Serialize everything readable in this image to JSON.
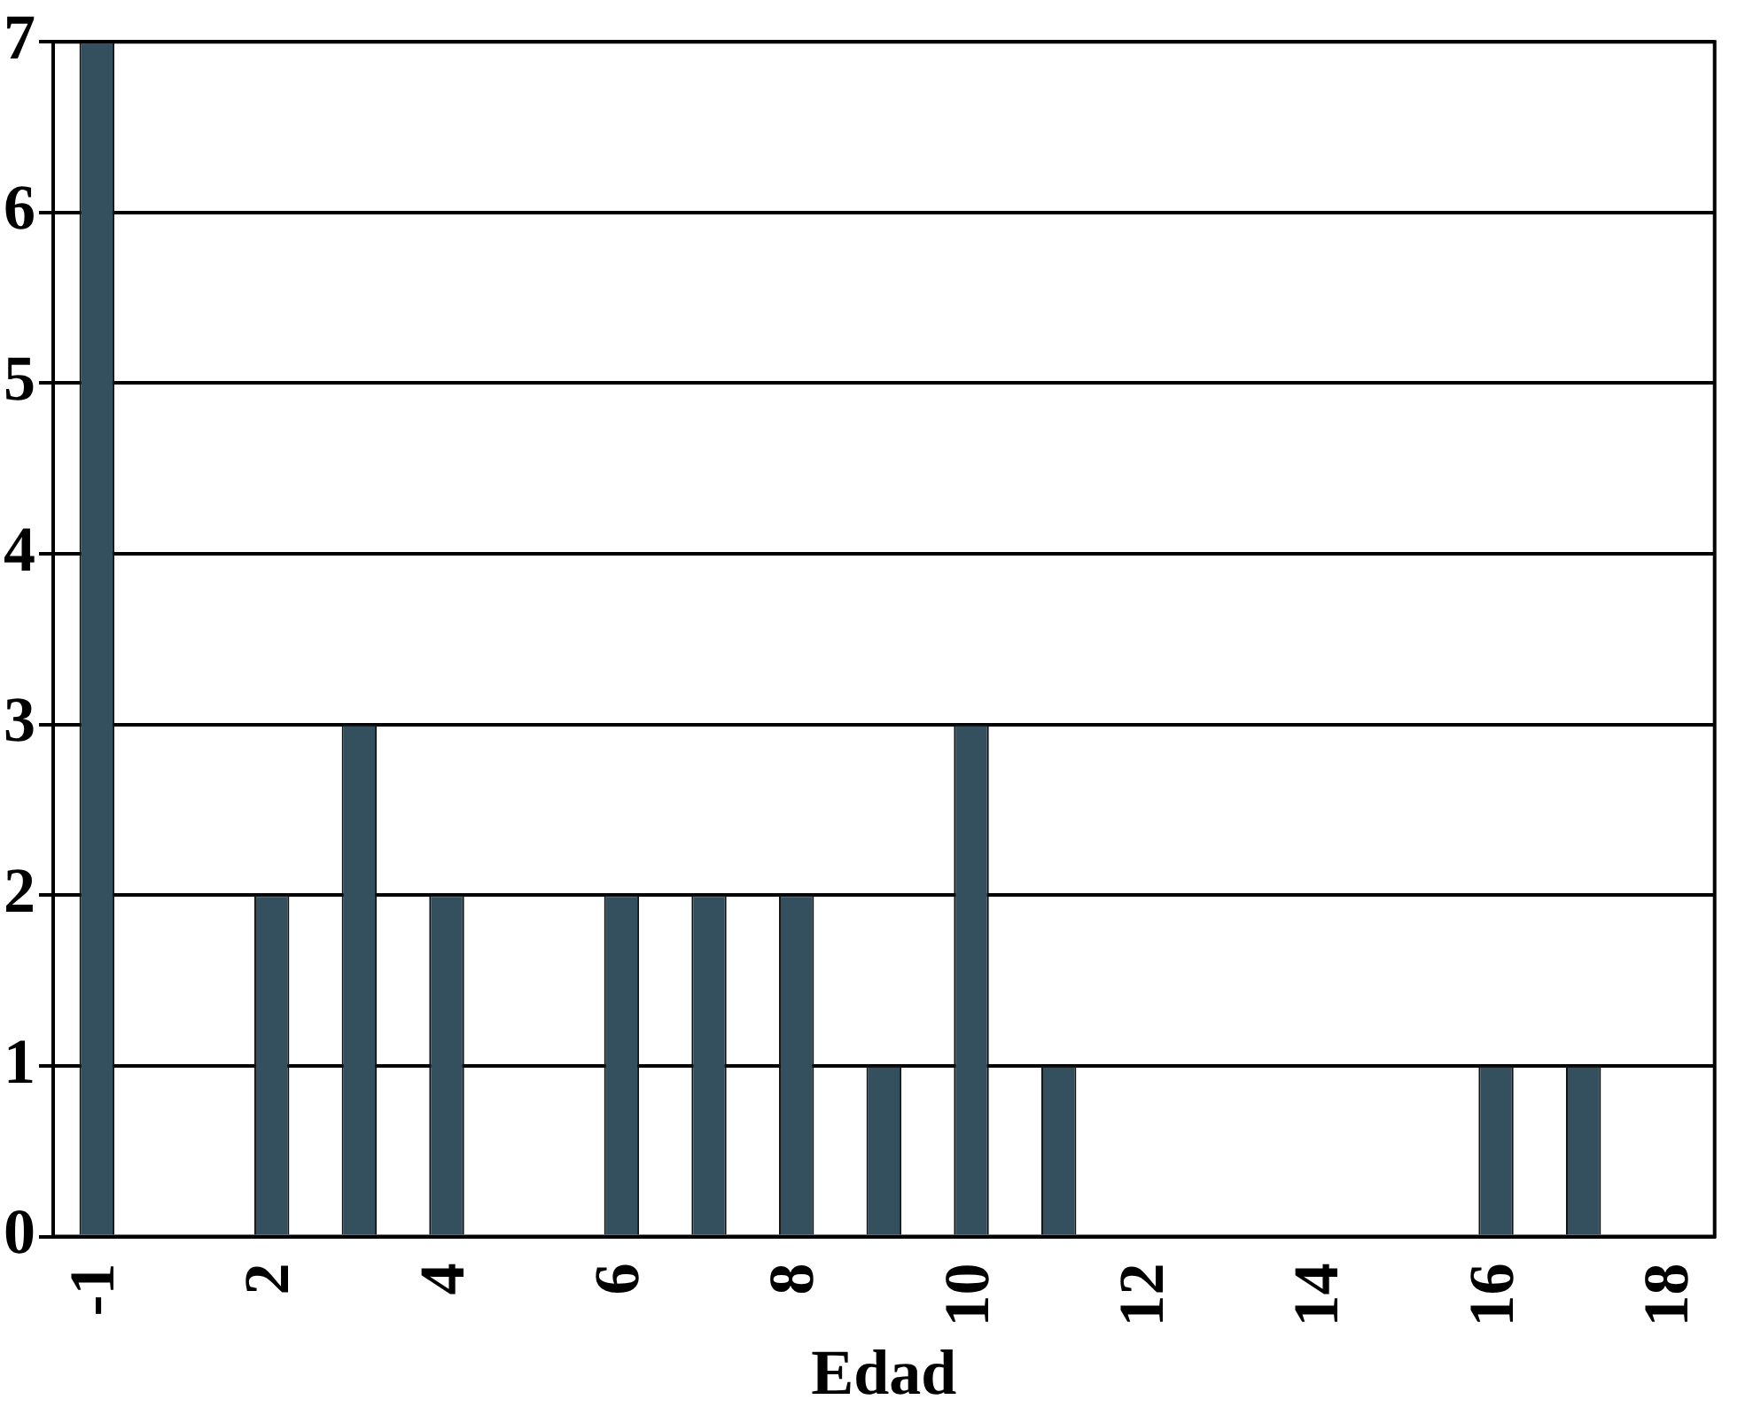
{
  "chart_data": {
    "type": "bar",
    "xlabel": "Edad",
    "categories": [
      "-1",
      null,
      "2",
      null,
      "4",
      null,
      "6",
      null,
      "8",
      null,
      "10",
      null,
      "12",
      null,
      "14",
      null,
      "16",
      null,
      "18"
    ],
    "values": [
      7,
      0,
      2,
      3,
      2,
      0,
      2,
      2,
      2,
      1,
      3,
      1,
      0,
      0,
      0,
      0,
      1,
      1,
      0
    ],
    "color": "#34505f",
    "ylim": [
      0,
      7
    ],
    "yticks": [
      0,
      1,
      2,
      3,
      4,
      5,
      6,
      7
    ],
    "grid": "y"
  }
}
